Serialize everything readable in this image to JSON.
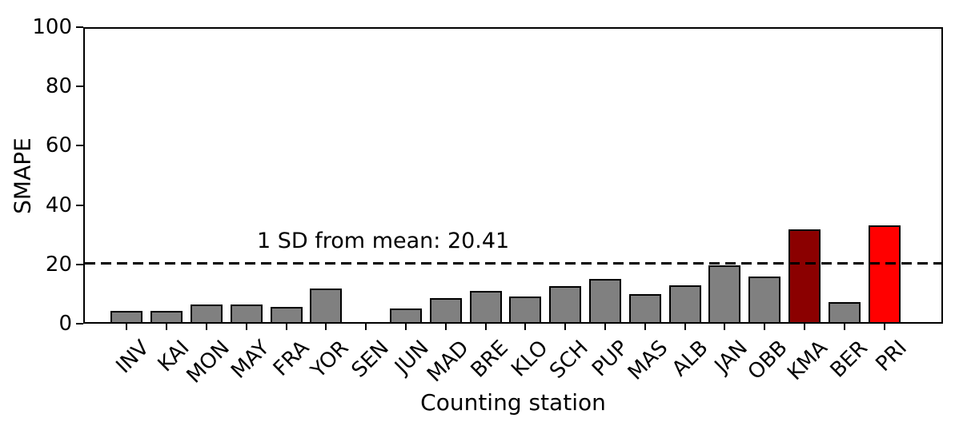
{
  "chart_data": {
    "type": "bar",
    "title": "",
    "xlabel": "Counting station",
    "ylabel": "SMAPE",
    "ylim": [
      0,
      100
    ],
    "yticks": [
      0,
      20,
      40,
      60,
      80,
      100
    ],
    "grid": false,
    "legend": null,
    "categories": [
      "INV",
      "KAI",
      "MON",
      "MAY",
      "FRA",
      "YOR",
      "SEN",
      "JUN",
      "MAD",
      "BRE",
      "KLO",
      "SCH",
      "PUP",
      "MAS",
      "ALB",
      "JAN",
      "OBB",
      "KMA",
      "BER",
      "PRI"
    ],
    "values": [
      4.2,
      4.2,
      6.6,
      6.5,
      5.7,
      11.9,
      0,
      5.1,
      8.7,
      11.0,
      9.2,
      12.6,
      15.0,
      9.9,
      13.0,
      19.6,
      15.9,
      31.9,
      7.4,
      33.1
    ],
    "bar_colors": [
      "#808080",
      "#808080",
      "#808080",
      "#808080",
      "#808080",
      "#808080",
      "#808080",
      "#808080",
      "#808080",
      "#808080",
      "#808080",
      "#808080",
      "#808080",
      "#808080",
      "#808080",
      "#808080",
      "#808080",
      "#8b0000",
      "#808080",
      "#ff0000"
    ],
    "colors": {
      "default_bar": "#808080",
      "highlight_dark": "#8b0000",
      "highlight_bright": "#ff0000",
      "bar_edge": "#000000",
      "threshold_line": "#000000",
      "text": "#000000",
      "background": "#ffffff"
    },
    "annotation": {
      "text": "1 SD from mean: 20.41",
      "line_value": 20.41,
      "line_style": "dashed"
    }
  }
}
